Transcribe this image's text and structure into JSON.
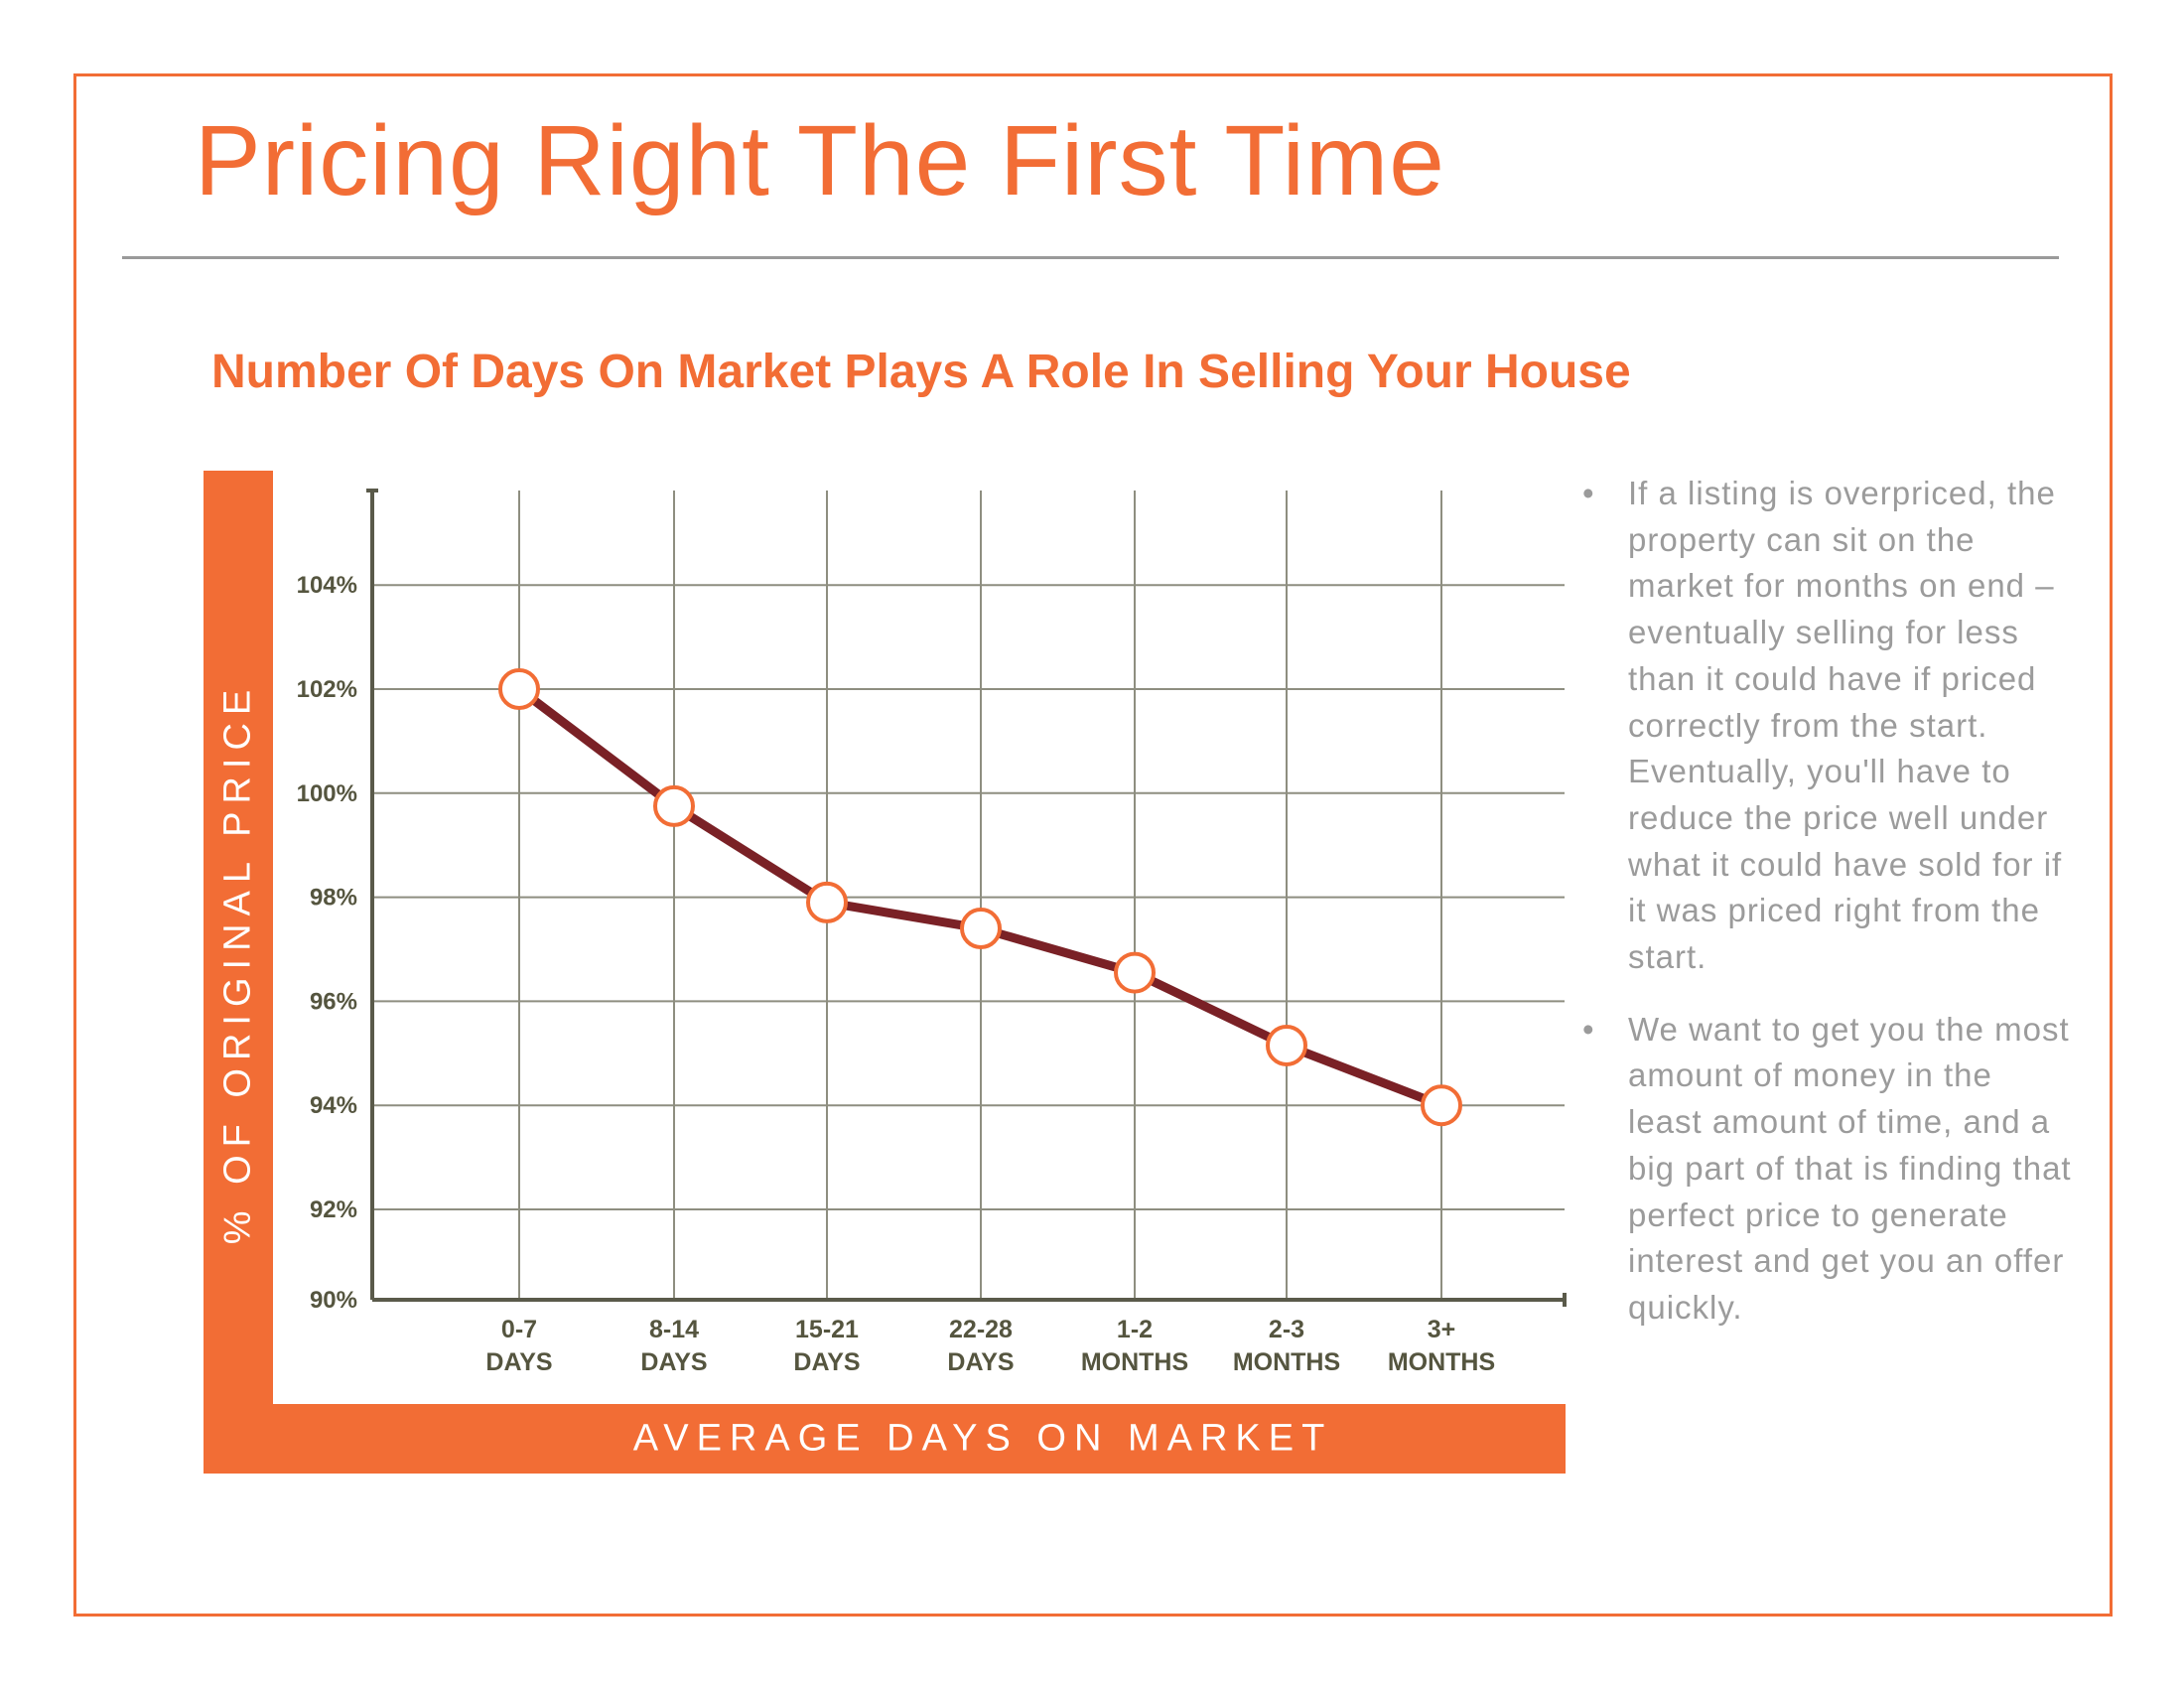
{
  "title": "Pricing Right The First Time",
  "subtitle": "Number Of Days On Market Plays A Role In Selling Your House",
  "bullets": [
    "If a listing is overpriced, the property can sit on the market for months on end – eventually selling for less than it could have if priced correctly from the start. Eventually, you'll have to reduce the price well under what it could have sold for if it was priced right from the start.",
    "We want to get you the most amount of money in the least amount of time, and a big part of that is finding that perfect price to generate interest and get you an offer quickly."
  ],
  "chart_data": {
    "type": "line",
    "title": "",
    "xlabel": "AVERAGE DAYS ON MARKET",
    "ylabel": "% OF ORIGINAL PRICE",
    "categories": [
      [
        "0-7",
        "DAYS"
      ],
      [
        "8-14",
        "DAYS"
      ],
      [
        "15-21",
        "DAYS"
      ],
      [
        "22-28",
        "DAYS"
      ],
      [
        "1-2",
        "MONTHS"
      ],
      [
        "2-3",
        "MONTHS"
      ],
      [
        "3+",
        "MONTHS"
      ]
    ],
    "values": [
      102,
      99.75,
      97.9,
      97.4,
      96.55,
      95.15,
      94
    ],
    "yticks": [
      90,
      92,
      94,
      96,
      98,
      100,
      102,
      104
    ],
    "ytick_labels": [
      "90%",
      "92%",
      "94%",
      "96%",
      "98%",
      "100%",
      "102%",
      "104%"
    ],
    "ylim": [
      90,
      106
    ],
    "grid": true,
    "colors": {
      "line": "#7a2126",
      "marker": "#f26d35",
      "grid": "#8e8e80",
      "axis": "#5a5a4a"
    }
  }
}
